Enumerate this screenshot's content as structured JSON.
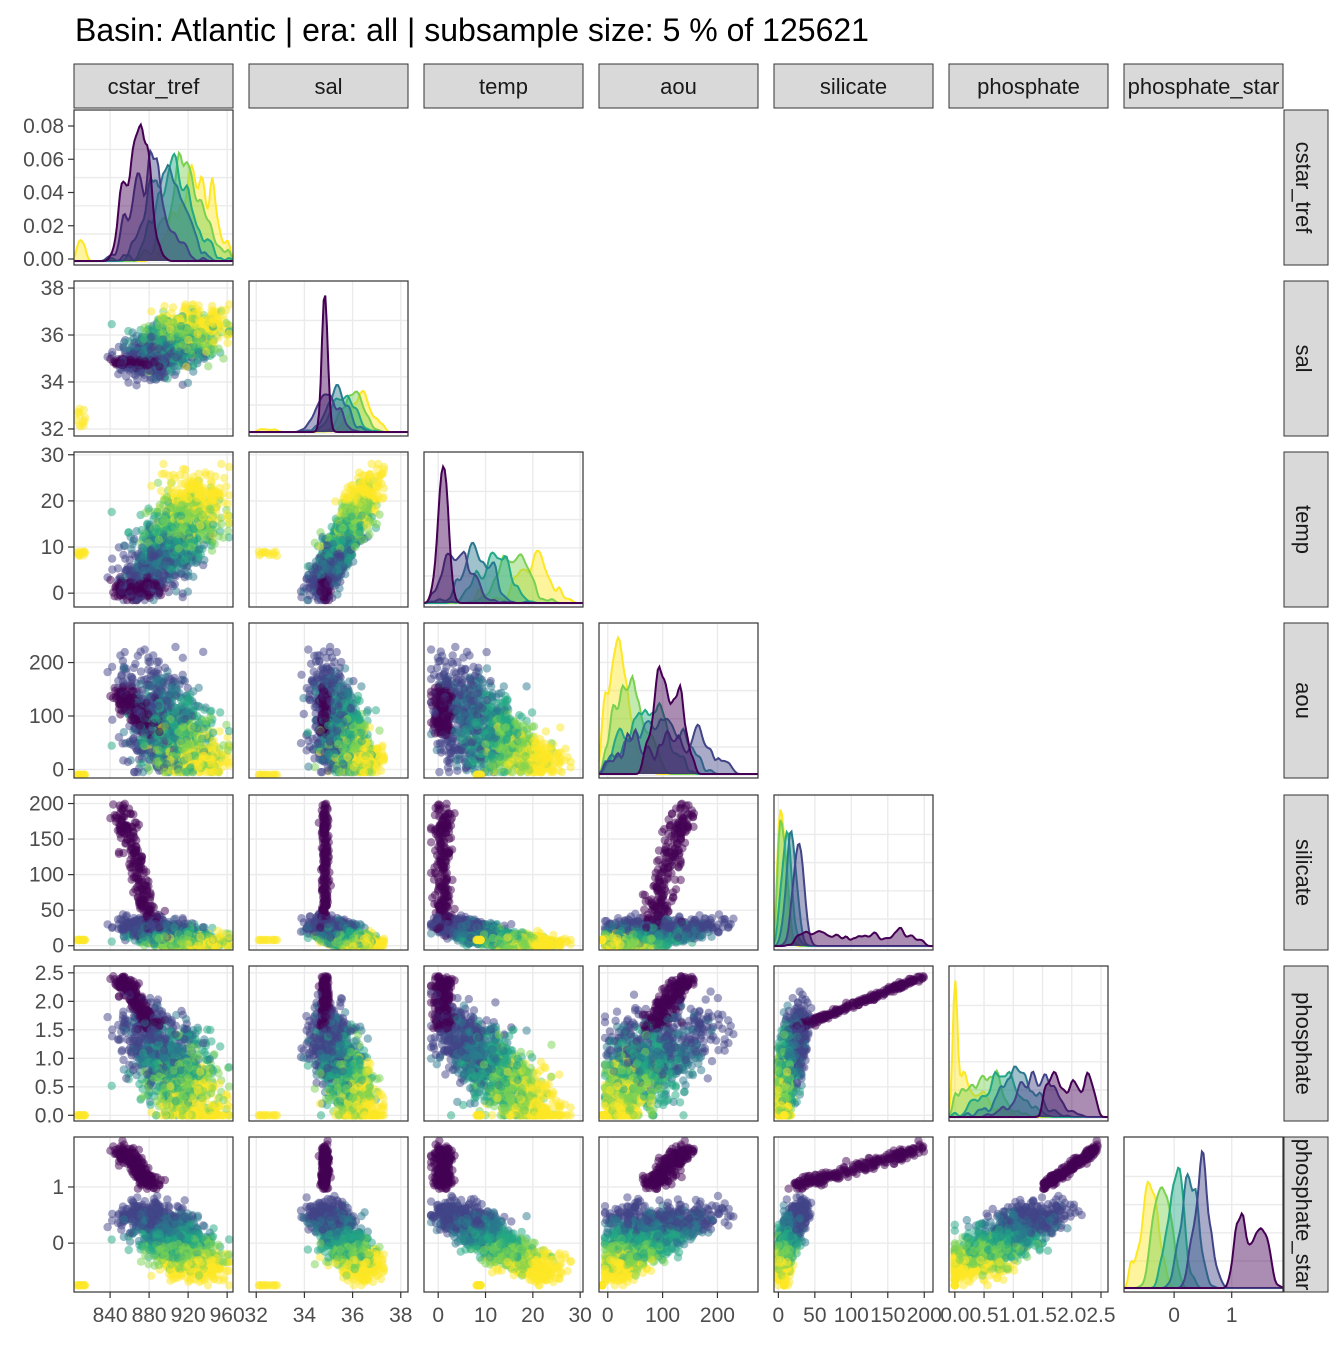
{
  "chart_data": {
    "type": "scatter-matrix",
    "title": "Basin: Atlantic | era: all | subsample size: 5 % of 125621",
    "diagonal": "density",
    "lower": "scatter",
    "grid": true,
    "palette": [
      "#440154",
      "#414487",
      "#2a788e",
      "#22a884",
      "#7ad151",
      "#fde725"
    ],
    "variables": [
      {
        "name": "cstar_tref",
        "range": [
          803,
          966
        ],
        "ticks": [
          840,
          880,
          920,
          960
        ],
        "tick_labels": [
          "840",
          "880",
          "920",
          "960"
        ]
      },
      {
        "name": "sal",
        "range": [
          31.7,
          38.3
        ],
        "ticks": [
          32,
          34,
          36,
          38
        ],
        "tick_labels": [
          "32",
          "34",
          "36",
          "38"
        ]
      },
      {
        "name": "temp",
        "range": [
          -3,
          30.6
        ],
        "ticks": [
          0,
          10,
          20,
          30
        ],
        "tick_labels": [
          "0",
          "10",
          "20",
          "30"
        ]
      },
      {
        "name": "aou",
        "range": [
          -16,
          274
        ],
        "ticks": [
          0,
          100,
          200
        ],
        "tick_labels": [
          "0",
          "100",
          "200"
        ]
      },
      {
        "name": "silicate",
        "range": [
          -6,
          212
        ],
        "ticks": [
          0,
          50,
          100,
          150,
          200
        ],
        "tick_labels": [
          "0",
          "50",
          "100",
          "150",
          "200"
        ]
      },
      {
        "name": "phosphate",
        "range": [
          -0.1,
          2.62
        ],
        "ticks": [
          0,
          0.5,
          1,
          1.5,
          2,
          2.5
        ],
        "tick_labels": [
          "0.0",
          "0.5",
          "1.0",
          "1.5",
          "2.0",
          "2.5"
        ]
      },
      {
        "name": "phosphate_star",
        "range": [
          -0.87,
          1.89
        ],
        "ticks": [
          0,
          1
        ],
        "tick_labels": [
          "0",
          "1"
        ]
      }
    ],
    "density_axis": {
      "range": [
        -0.004,
        0.088
      ],
      "ticks": [
        0,
        0.02,
        0.04,
        0.06,
        0.08
      ],
      "tick_labels": [
        "0.00",
        "0.02",
        "0.04",
        "0.06",
        "0.08"
      ]
    }
  }
}
